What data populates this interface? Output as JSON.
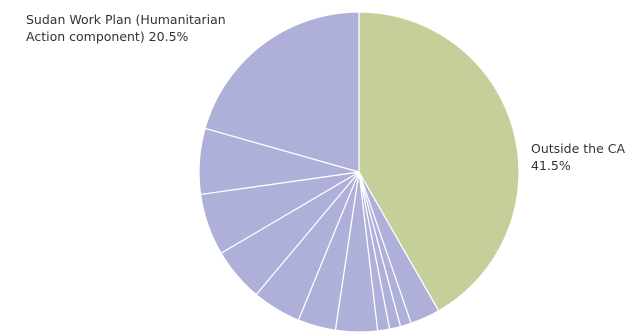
{
  "chart_data": {
    "type": "pie",
    "title": "",
    "start_angle_deg": 0,
    "direction": "clockwise",
    "slices": [
      {
        "name": "Outside the CA",
        "value": 41.5,
        "color": "#c5cf99",
        "label_line1": "Outside the CA",
        "label_line2": "41.5%"
      },
      {
        "name": "",
        "value": 3.0,
        "color": "#aeb0d9"
      },
      {
        "name": "",
        "value": 1.1,
        "color": "#aeb0d9"
      },
      {
        "name": "",
        "value": 1.1,
        "color": "#aeb0d9"
      },
      {
        "name": "",
        "value": 1.2,
        "color": "#aeb0d9"
      },
      {
        "name": "",
        "value": 4.2,
        "color": "#aeb0d9"
      },
      {
        "name": "",
        "value": 3.8,
        "color": "#aeb0d9"
      },
      {
        "name": "",
        "value": 4.9,
        "color": "#aeb0d9"
      },
      {
        "name": "",
        "value": 5.4,
        "color": "#aeb0d9"
      },
      {
        "name": "",
        "value": 6.2,
        "color": "#aeb0d9"
      },
      {
        "name": "",
        "value": 6.6,
        "color": "#aeb0d9"
      },
      {
        "name": "Sudan Work Plan (Humanitarian Action component)",
        "value": 20.5,
        "color": "#aeb0d9",
        "label_line1": "Sudan Work Plan (Humanitarian",
        "label_line2": "Action component) 20.5%"
      }
    ]
  }
}
